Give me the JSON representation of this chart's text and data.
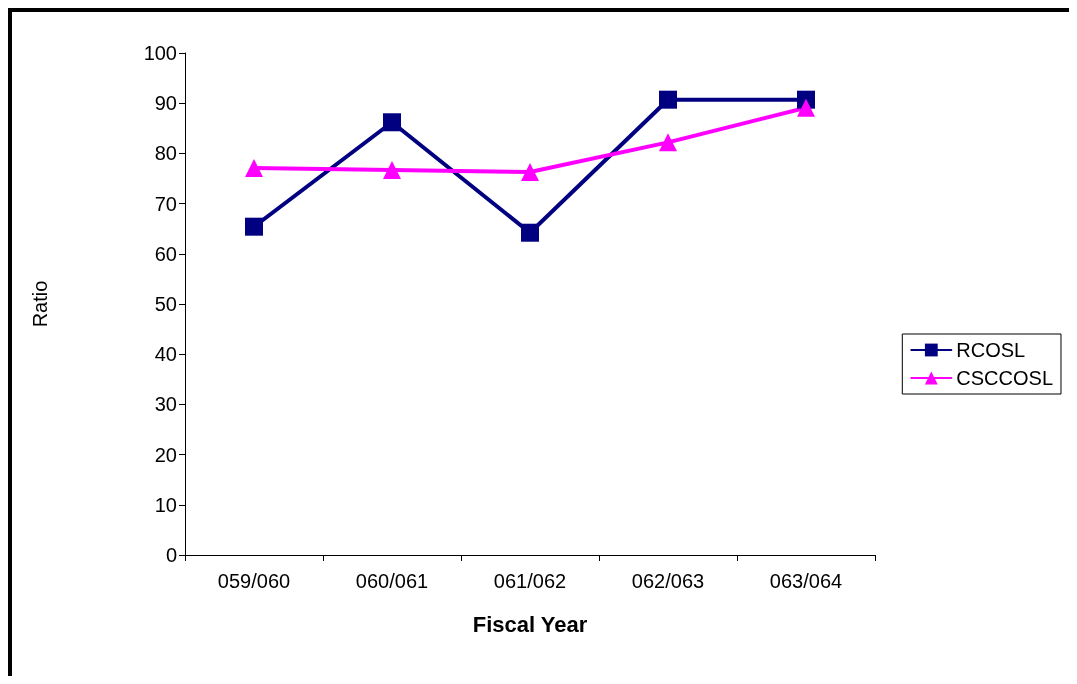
{
  "chart_data": {
    "type": "line",
    "xlabel": "Fiscal Year",
    "ylabel": "Ratio",
    "categories": [
      "059/060",
      "060/061",
      "061/062",
      "062/063",
      "063/064"
    ],
    "series": [
      {
        "name": "RCOSL",
        "color": "#000080",
        "marker": "square",
        "values": [
          65.4,
          86.2,
          64.2,
          90.7,
          90.7
        ]
      },
      {
        "name": "CSCCOSL",
        "color": "#ff00ff",
        "marker": "triangle",
        "values": [
          77.1,
          76.7,
          76.3,
          82.2,
          89.1
        ]
      }
    ],
    "ylim": [
      0,
      100
    ],
    "yticks": [
      0,
      10,
      20,
      30,
      40,
      50,
      60,
      70,
      80,
      90,
      100
    ],
    "grid": false,
    "legend": "right",
    "line_style": "solid"
  }
}
